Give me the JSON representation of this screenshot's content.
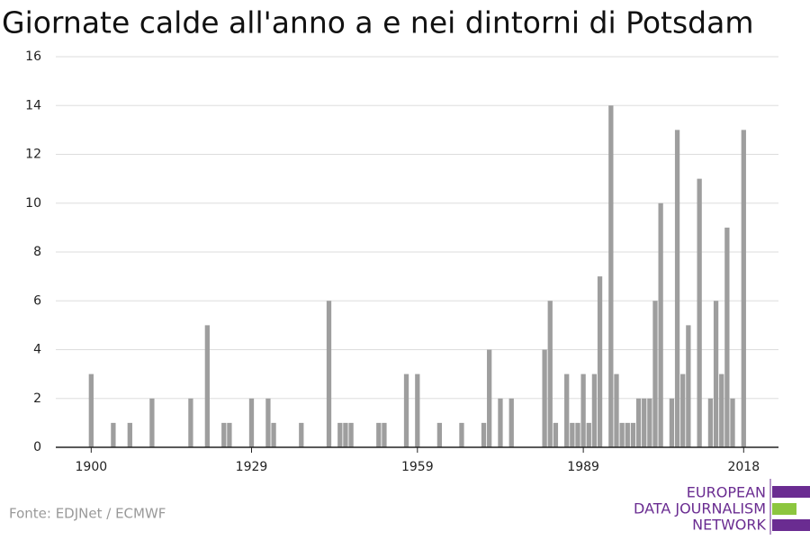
{
  "chart_data": {
    "type": "bar",
    "title": "Giornate calde all'anno a e nei dintorni di Potsdam",
    "source": "Fonte: EDJNet / ECMWF",
    "logo": [
      "EUROPEAN",
      "DATA JOURNALISM",
      "NETWORK"
    ],
    "x": [
      1900,
      1904,
      1907,
      1911,
      1918,
      1921,
      1924,
      1925,
      1929,
      1932,
      1933,
      1938,
      1943,
      1945,
      1946,
      1947,
      1952,
      1953,
      1957,
      1959,
      1963,
      1967,
      1971,
      1972,
      1974,
      1976,
      1982,
      1983,
      1984,
      1986,
      1987,
      1988,
      1989,
      1990,
      1991,
      1992,
      1994,
      1995,
      1996,
      1997,
      1998,
      1999,
      2000,
      2001,
      2002,
      2003,
      2005,
      2006,
      2007,
      2008,
      2010,
      2012,
      2013,
      2014,
      2015,
      2016,
      2018
    ],
    "values": [
      3,
      1,
      1,
      2,
      2,
      5,
      1,
      1,
      2,
      2,
      1,
      1,
      6,
      1,
      1,
      1,
      1,
      1,
      3,
      3,
      1,
      1,
      1,
      4,
      2,
      2,
      4,
      6,
      1,
      3,
      1,
      1,
      3,
      1,
      3,
      7,
      14,
      3,
      1,
      1,
      1,
      2,
      2,
      2,
      6,
      10,
      2,
      13,
      3,
      5,
      11,
      2,
      6,
      3,
      9,
      2,
      13
    ],
    "color": "#9e9e9e",
    "xlim": [
      1893.6,
      2024.3
    ],
    "xticks": [
      1900,
      1929,
      1959,
      1989,
      2018
    ],
    "ylim": [
      0,
      16
    ],
    "yticks": [
      0,
      2,
      4,
      6,
      8,
      10,
      12,
      14,
      16
    ],
    "grid": true
  }
}
